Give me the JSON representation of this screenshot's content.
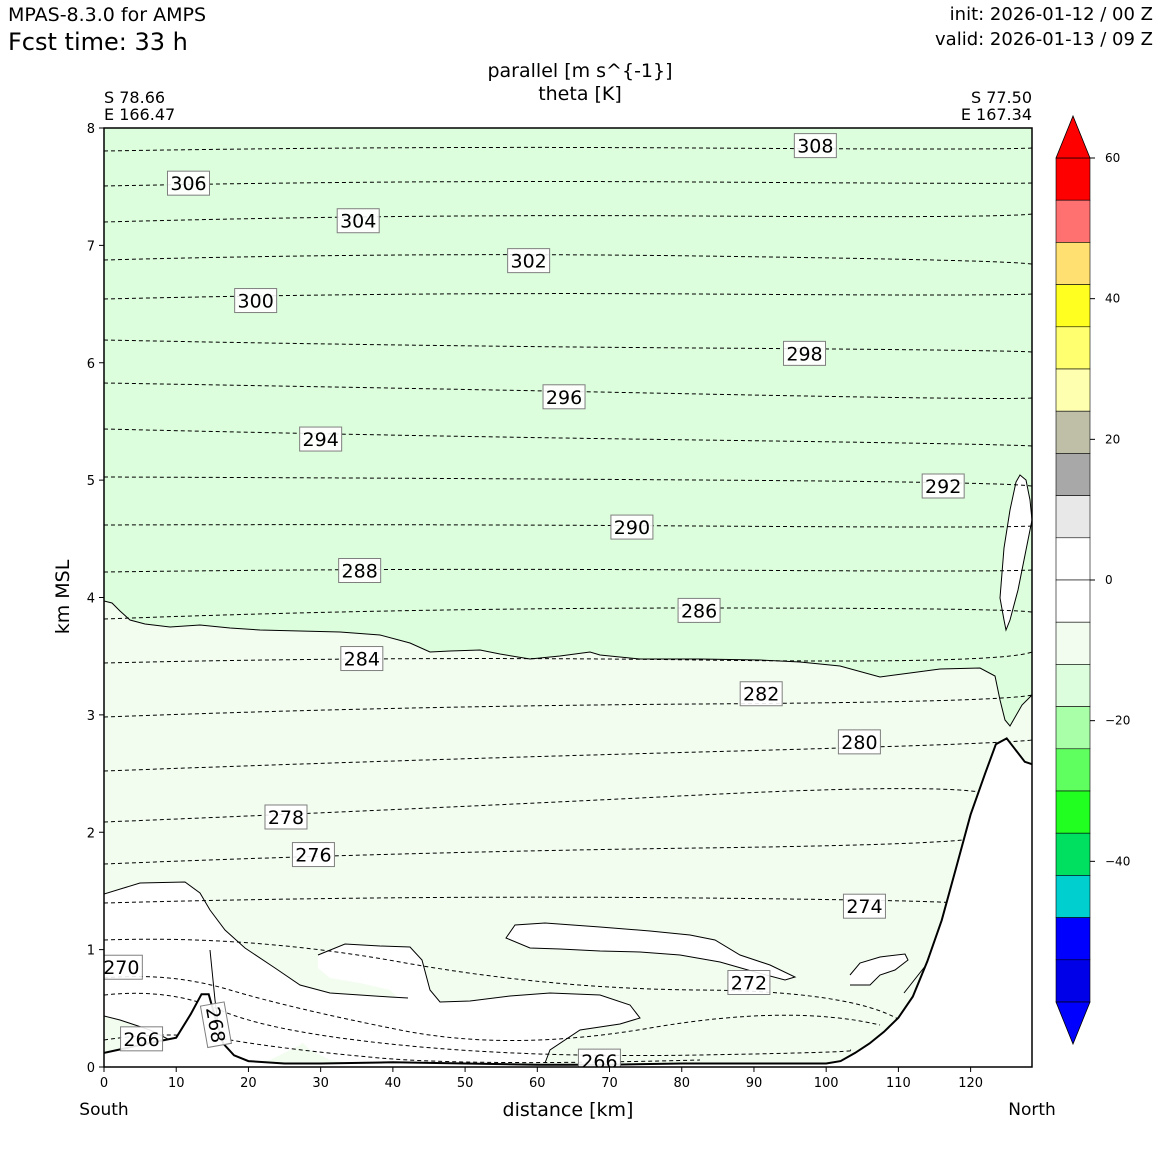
{
  "header": {
    "model": "MPAS-8.3.0 for AMPS",
    "fcst_time": "Fcst time:   33 h",
    "init": "init: 2026-01-12 / 00 Z",
    "valid": "valid: 2026-01-13 / 09 Z"
  },
  "endpoints": {
    "left_lat": "S 78.66",
    "left_lon": "E 166.47",
    "right_lat": "S 77.50",
    "right_lon": "E 167.34",
    "left_dir": "South",
    "right_dir": "North"
  },
  "chart_data": {
    "type": "contour",
    "title": "parallel [m s^{-1}]",
    "subtitle": "theta [K]",
    "xlabel": "distance [km]",
    "ylabel": "km MSL",
    "xlim": [
      0,
      128.5
    ],
    "ylim": [
      0,
      8
    ],
    "xticks": [
      0,
      10,
      20,
      30,
      40,
      50,
      60,
      70,
      80,
      90,
      100,
      110,
      120
    ],
    "yticks": [
      0,
      1,
      2,
      3,
      4,
      5,
      6,
      7,
      8
    ],
    "colorbar": {
      "ticks": [
        60,
        40,
        20,
        0,
        -20,
        -40
      ],
      "tick_labels": [
        "60",
        "40",
        "20",
        "0",
        "−20",
        "−40"
      ],
      "levels": [
        60,
        54,
        48,
        42,
        36,
        30,
        24,
        18,
        12,
        6,
        0,
        -6,
        -12,
        -18,
        -24,
        -30,
        -36,
        -42,
        -48,
        -54,
        -60
      ],
      "colors": [
        "#ff0000",
        "#ff7070",
        "#ffe070",
        "#ffff20",
        "#ffff70",
        "#ffffb0",
        "#bfbfa8",
        "#a8a8a8",
        "#e8e8e8",
        "#ffffff",
        "#ffffff",
        "#f2fdf0",
        "#ddfedd",
        "#a8ffa8",
        "#60ff60",
        "#20ff20",
        "#00e060",
        "#00cfcf",
        "#0000ff",
        "#0000e8"
      ],
      "over_color": "#ff0000",
      "under_color": "#0000ff"
    },
    "fill_regions": [
      {
        "range": "-12 to -6",
        "color": "#ddfedd"
      },
      {
        "range": "-6 to 0",
        "color": "#f2fdf0"
      },
      {
        "range": "0 to 6",
        "color": "#ffffff"
      }
    ],
    "theta_labels": [
      {
        "value": "308",
        "x": 98.5,
        "y": 7.85
      },
      {
        "value": "306",
        "x": 11.7,
        "y": 7.53
      },
      {
        "value": "304",
        "x": 35.2,
        "y": 7.21
      },
      {
        "value": "302",
        "x": 58.8,
        "y": 6.87
      },
      {
        "value": "300",
        "x": 21.0,
        "y": 6.53
      },
      {
        "value": "298",
        "x": 97.0,
        "y": 6.08
      },
      {
        "value": "296",
        "x": 63.7,
        "y": 5.71
      },
      {
        "value": "294",
        "x": 30.0,
        "y": 5.35
      },
      {
        "value": "292",
        "x": 116.2,
        "y": 4.95
      },
      {
        "value": "290",
        "x": 73.1,
        "y": 4.6
      },
      {
        "value": "288",
        "x": 35.4,
        "y": 4.23
      },
      {
        "value": "286",
        "x": 82.4,
        "y": 3.89
      },
      {
        "value": "284",
        "x": 35.7,
        "y": 3.48
      },
      {
        "value": "282",
        "x": 91.0,
        "y": 3.18
      },
      {
        "value": "280",
        "x": 104.6,
        "y": 2.77
      },
      {
        "value": "278",
        "x": 25.2,
        "y": 2.13
      },
      {
        "value": "276",
        "x": 29.0,
        "y": 1.81
      },
      {
        "value": "274",
        "x": 105.3,
        "y": 1.37
      },
      {
        "value": "272",
        "x": 89.3,
        "y": 0.72
      },
      {
        "value": "270",
        "x": 2.4,
        "y": 0.85
      },
      {
        "value": "268",
        "x": 15.5,
        "y": 0.36
      },
      {
        "value": "266",
        "x": 5.2,
        "y": 0.24
      },
      {
        "value": "266",
        "x": 68.6,
        "y": 0.05
      }
    ],
    "terrain": [
      [
        0,
        0.12
      ],
      [
        6,
        0.2
      ],
      [
        10,
        0.25
      ],
      [
        12,
        0.45
      ],
      [
        13.5,
        0.62
      ],
      [
        14.5,
        0.62
      ],
      [
        15.5,
        0.4
      ],
      [
        16.5,
        0.2
      ],
      [
        18,
        0.1
      ],
      [
        20,
        0.05
      ],
      [
        25,
        0.03
      ],
      [
        30,
        0.03
      ],
      [
        40,
        0.04
      ],
      [
        50,
        0.03
      ],
      [
        60,
        0.02
      ],
      [
        70,
        0.02
      ],
      [
        80,
        0.03
      ],
      [
        90,
        0.03
      ],
      [
        100,
        0.03
      ],
      [
        102,
        0.05
      ],
      [
        104,
        0.12
      ],
      [
        106,
        0.2
      ],
      [
        108,
        0.3
      ],
      [
        110,
        0.42
      ],
      [
        112,
        0.6
      ],
      [
        114,
        0.9
      ],
      [
        116,
        1.25
      ],
      [
        118,
        1.7
      ],
      [
        120,
        2.15
      ],
      [
        122,
        2.5
      ],
      [
        123.5,
        2.75
      ],
      [
        125,
        2.8
      ],
      [
        126,
        2.72
      ],
      [
        127.5,
        2.6
      ],
      [
        128.5,
        2.58
      ]
    ]
  }
}
